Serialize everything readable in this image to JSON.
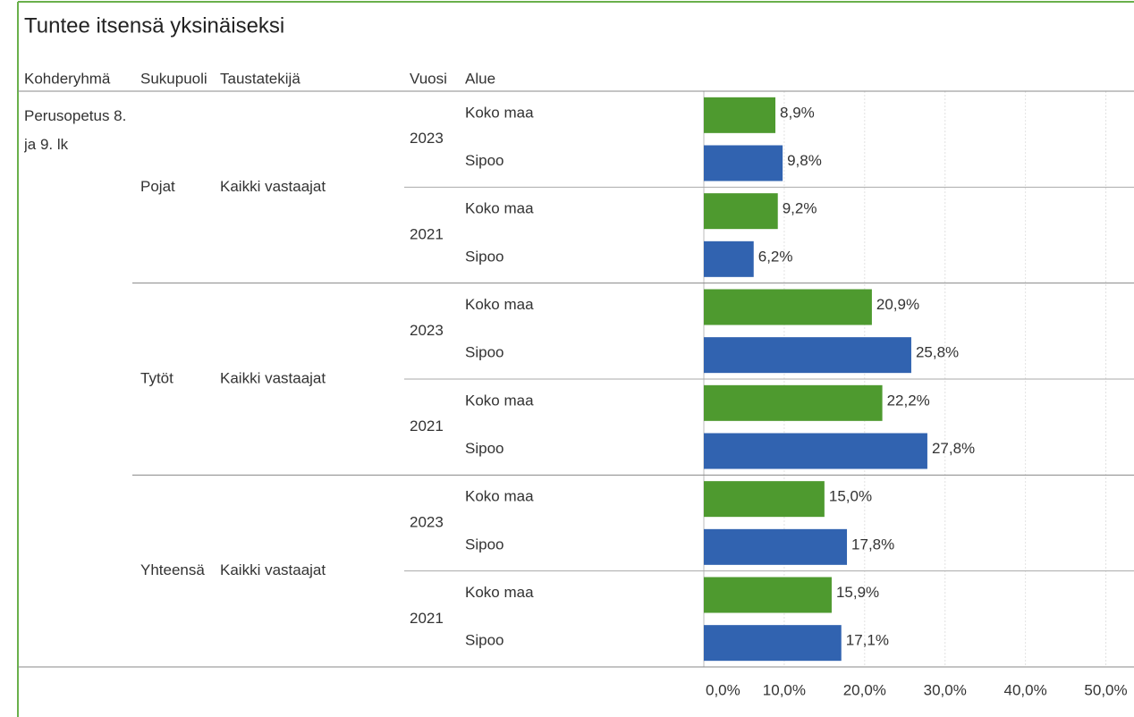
{
  "chart_data": {
    "type": "bar",
    "orientation": "horizontal",
    "title": "Tuntee itsensä yksinäiseksi",
    "headers": [
      "Kohderyhmä",
      "Sukupuoli",
      "Taustatekijä",
      "Vuosi",
      "Alue"
    ],
    "kohderyhma": "Perusopetus 8. ja 9. lk",
    "sukupuoli": [
      "Pojat",
      "Tytöt",
      "Yhteensä"
    ],
    "taustatekija": [
      "Kaikki vastaajat",
      "Kaikki vastaajat",
      "Kaikki vastaajat"
    ],
    "vuosi": [
      "2023",
      "2021",
      "2023",
      "2021",
      "2023",
      "2021"
    ],
    "categories": [
      "Koko maa",
      "Sipoo",
      "Koko maa",
      "Sipoo",
      "Koko maa",
      "Sipoo",
      "Koko maa",
      "Sipoo",
      "Koko maa",
      "Sipoo",
      "Koko maa",
      "Sipoo"
    ],
    "values": [
      8.9,
      9.8,
      9.2,
      6.2,
      20.9,
      25.8,
      22.2,
      27.8,
      15.0,
      17.8,
      15.9,
      17.1
    ],
    "value_labels": [
      "8,9%",
      "9,8%",
      "9,2%",
      "6,2%",
      "20,9%",
      "25,8%",
      "22,2%",
      "27,8%",
      "15,0%",
      "17,8%",
      "15,9%",
      "17,1%"
    ],
    "colors": [
      "#4e9a2f",
      "#3163b0",
      "#4e9a2f",
      "#3163b0",
      "#4e9a2f",
      "#3163b0",
      "#4e9a2f",
      "#3163b0",
      "#4e9a2f",
      "#3163b0",
      "#4e9a2f",
      "#3163b0"
    ],
    "xlim": [
      0,
      53.5
    ],
    "xticks": [
      {
        "value": 0,
        "label": "0,0%"
      },
      {
        "value": 10,
        "label": "10,0%"
      },
      {
        "value": 20,
        "label": "20,0%"
      },
      {
        "value": 30,
        "label": "30,0%"
      },
      {
        "value": 40,
        "label": "40,0%"
      },
      {
        "value": 50,
        "label": "50,0%"
      }
    ],
    "grid": true
  }
}
